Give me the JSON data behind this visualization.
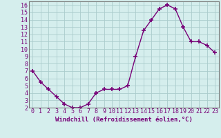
{
  "x": [
    0,
    1,
    2,
    3,
    4,
    5,
    6,
    7,
    8,
    9,
    10,
    11,
    12,
    13,
    14,
    15,
    16,
    17,
    18,
    19,
    20,
    21,
    22,
    23
  ],
  "y": [
    7.0,
    5.5,
    4.5,
    3.5,
    2.5,
    2.0,
    2.0,
    2.5,
    4.0,
    4.5,
    4.5,
    4.5,
    5.0,
    9.0,
    12.5,
    14.0,
    15.5,
    16.0,
    15.5,
    13.0,
    11.0,
    11.0,
    10.5,
    9.5
  ],
  "line_color": "#770077",
  "marker": "+",
  "marker_size": 4,
  "marker_lw": 1.2,
  "bg_color": "#d5eeed",
  "grid_color": "#aacccc",
  "xlabel": "Windchill (Refroidissement éolien,°C)",
  "xlabel_fontsize": 6.5,
  "tick_fontsize": 6,
  "ylim": [
    2,
    16.5
  ],
  "yticks": [
    2,
    3,
    4,
    5,
    6,
    7,
    8,
    9,
    10,
    11,
    12,
    13,
    14,
    15,
    16
  ],
  "xlim": [
    -0.5,
    23.5
  ],
  "xticks": [
    0,
    1,
    2,
    3,
    4,
    5,
    6,
    7,
    8,
    9,
    10,
    11,
    12,
    13,
    14,
    15,
    16,
    17,
    18,
    19,
    20,
    21,
    22,
    23
  ],
  "line_width": 1.0,
  "spine_color": "#777777"
}
